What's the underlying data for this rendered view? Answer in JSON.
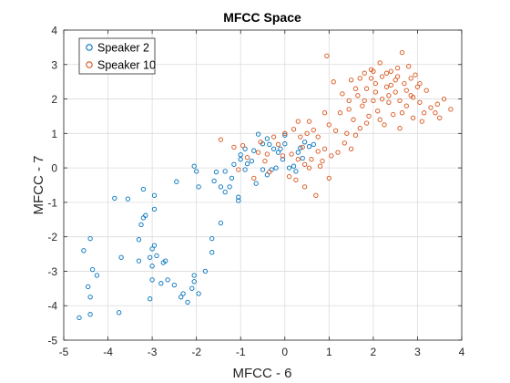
{
  "chart_data": {
    "type": "scatter",
    "title": "MFCC Space",
    "xlabel": "MFCC - 6",
    "ylabel": "MFCC - 7",
    "xlim": [
      -5,
      4
    ],
    "ylim": [
      -5,
      4
    ],
    "xticks": [
      "-5",
      "-4",
      "-3",
      "-2",
      "-1",
      "0",
      "1",
      "2",
      "3",
      "4"
    ],
    "yticks": [
      "-5",
      "-4",
      "-3",
      "-2",
      "-1",
      "0",
      "1",
      "2",
      "3",
      "4"
    ],
    "grid": true,
    "legend_position": "top-left",
    "series": [
      {
        "name": "Speaker 2",
        "color": "#0072BD",
        "marker": "open-circle",
        "points": [
          [
            -4.65,
            -4.35
          ],
          [
            -4.4,
            -4.25
          ],
          [
            -4.4,
            -3.75
          ],
          [
            -4.45,
            -3.45
          ],
          [
            -4.25,
            -3.12
          ],
          [
            -4.35,
            -2.95
          ],
          [
            -4.55,
            -2.4
          ],
          [
            -4.4,
            -2.05
          ],
          [
            -3.85,
            -0.88
          ],
          [
            -3.55,
            -0.9
          ],
          [
            -3.2,
            -0.62
          ],
          [
            -2.95,
            -0.8
          ],
          [
            -3.15,
            -1.38
          ],
          [
            -3.2,
            -1.45
          ],
          [
            -3.25,
            -1.65
          ],
          [
            -2.95,
            -1.2
          ],
          [
            -3.3,
            -2.08
          ],
          [
            -2.95,
            -2.25
          ],
          [
            -2.9,
            -2.55
          ],
          [
            -3.05,
            -2.6
          ],
          [
            -2.75,
            -2.75
          ],
          [
            -3.3,
            -2.7
          ],
          [
            -3.0,
            -2.85
          ],
          [
            -3.0,
            -3.25
          ],
          [
            -2.65,
            -3.25
          ],
          [
            -2.5,
            -3.4
          ],
          [
            -3.05,
            -3.8
          ],
          [
            -2.8,
            -3.35
          ],
          [
            -3.0,
            -2.35
          ],
          [
            -2.7,
            -2.7
          ],
          [
            -3.7,
            -2.6
          ],
          [
            -3.75,
            -4.2
          ],
          [
            -2.05,
            -3.12
          ],
          [
            -2.1,
            -3.5
          ],
          [
            -2.3,
            -3.65
          ],
          [
            -2.35,
            -3.75
          ],
          [
            -2.2,
            -3.9
          ],
          [
            -1.95,
            -3.65
          ],
          [
            -2.05,
            -3.3
          ],
          [
            -1.8,
            -3.0
          ],
          [
            -1.65,
            -2.45
          ],
          [
            -1.65,
            -2.05
          ],
          [
            -1.45,
            -1.6
          ],
          [
            -1.05,
            -0.95
          ],
          [
            -1.05,
            -0.85
          ],
          [
            -1.6,
            -0.38
          ],
          [
            -1.45,
            -0.55
          ],
          [
            -1.35,
            -0.7
          ],
          [
            -1.25,
            -0.55
          ],
          [
            -1.2,
            -0.3
          ],
          [
            -1.35,
            -0.1
          ],
          [
            -1.55,
            -0.12
          ],
          [
            -1.0,
            0.25
          ],
          [
            -1.0,
            0.38
          ],
          [
            -0.9,
            -0.05
          ],
          [
            -0.85,
            0.12
          ],
          [
            -0.75,
            0.2
          ],
          [
            -0.7,
            0.5
          ],
          [
            -0.6,
            0.98
          ],
          [
            -0.5,
            -0.05
          ],
          [
            -0.5,
            0.7
          ],
          [
            -0.4,
            0.85
          ],
          [
            -0.3,
            -0.05
          ],
          [
            -0.2,
            0.0
          ],
          [
            -0.25,
            0.55
          ],
          [
            -0.35,
            0.68
          ],
          [
            -0.1,
            0.55
          ],
          [
            -0.05,
            0.25
          ],
          [
            0.0,
            0.95
          ],
          [
            0.1,
            0.0
          ],
          [
            0.2,
            0.05
          ],
          [
            0.25,
            -0.1
          ],
          [
            0.3,
            0.45
          ],
          [
            0.35,
            0.58
          ],
          [
            0.45,
            0.75
          ],
          [
            0.55,
            0.62
          ],
          [
            0.65,
            0.68
          ],
          [
            -2.0,
            -0.1
          ],
          [
            -2.05,
            0.05
          ],
          [
            -2.45,
            -0.4
          ],
          [
            -1.95,
            -0.55
          ],
          [
            -0.65,
            -0.45
          ],
          [
            -1.15,
            0.1
          ],
          [
            -0.9,
            0.55
          ],
          [
            -0.15,
            0.45
          ],
          [
            0.4,
            0.28
          ],
          [
            0.0,
            0.7
          ],
          [
            -0.4,
            -0.2
          ]
        ]
      },
      {
        "name": "Speaker 10",
        "color": "#D95319",
        "marker": "open-circle",
        "points": [
          [
            -1.45,
            0.82
          ],
          [
            -1.15,
            0.6
          ],
          [
            -1.05,
            -0.05
          ],
          [
            -0.85,
            0.3
          ],
          [
            -0.6,
            0.45
          ],
          [
            -0.45,
            0.2
          ],
          [
            -0.35,
            -0.12
          ],
          [
            -0.25,
            0.9
          ],
          [
            -0.15,
            0.68
          ],
          [
            0.0,
            1.0
          ],
          [
            0.1,
            -0.25
          ],
          [
            0.15,
            0.4
          ],
          [
            0.2,
            1.12
          ],
          [
            0.25,
            -0.35
          ],
          [
            0.3,
            1.35
          ],
          [
            0.35,
            0.9
          ],
          [
            0.4,
            0.6
          ],
          [
            0.45,
            -0.55
          ],
          [
            0.5,
            1.0
          ],
          [
            0.55,
            1.35
          ],
          [
            0.6,
            0.25
          ],
          [
            0.65,
            1.1
          ],
          [
            0.7,
            -0.8
          ],
          [
            0.75,
            0.48
          ],
          [
            0.8,
            0.05
          ],
          [
            0.85,
            0.2
          ],
          [
            0.9,
            0.55
          ],
          [
            0.95,
            3.25
          ],
          [
            1.0,
            -0.3
          ],
          [
            1.05,
            0.35
          ],
          [
            1.15,
            1.08
          ],
          [
            1.25,
            1.6
          ],
          [
            1.3,
            2.15
          ],
          [
            1.35,
            0.72
          ],
          [
            1.4,
            1.0
          ],
          [
            1.45,
            1.7
          ],
          [
            1.5,
            2.55
          ],
          [
            1.55,
            1.4
          ],
          [
            1.6,
            0.95
          ],
          [
            1.65,
            2.1
          ],
          [
            1.7,
            2.6
          ],
          [
            1.75,
            1.8
          ],
          [
            1.8,
            2.75
          ],
          [
            1.85,
            2.3
          ],
          [
            1.9,
            1.5
          ],
          [
            1.95,
            2.85
          ],
          [
            2.0,
            1.95
          ],
          [
            2.05,
            2.45
          ],
          [
            2.1,
            1.65
          ],
          [
            2.15,
            3.05
          ],
          [
            2.2,
            2.65
          ],
          [
            2.25,
            1.25
          ],
          [
            2.3,
            2.35
          ],
          [
            2.35,
            1.9
          ],
          [
            2.4,
            2.8
          ],
          [
            2.45,
            1.55
          ],
          [
            2.5,
            2.2
          ],
          [
            2.55,
            2.65
          ],
          [
            2.6,
            1.15
          ],
          [
            2.65,
            3.35
          ],
          [
            2.7,
            2.45
          ],
          [
            2.75,
            1.8
          ],
          [
            2.8,
            2.95
          ],
          [
            2.85,
            2.1
          ],
          [
            2.9,
            1.45
          ],
          [
            2.95,
            2.7
          ],
          [
            3.0,
            2.35
          ],
          [
            3.05,
            1.9
          ],
          [
            3.1,
            1.35
          ],
          [
            3.2,
            2.25
          ],
          [
            3.3,
            1.75
          ],
          [
            3.4,
            1.6
          ],
          [
            3.5,
            1.45
          ],
          [
            3.6,
            2.0
          ],
          [
            3.75,
            1.7
          ],
          [
            1.5,
            0.55
          ],
          [
            1.7,
            1.15
          ],
          [
            2.2,
            2.0
          ],
          [
            2.4,
            2.4
          ],
          [
            2.55,
            2.9
          ],
          [
            1.6,
            2.3
          ],
          [
            1.95,
            2.6
          ],
          [
            2.05,
            2.2
          ],
          [
            2.3,
            2.75
          ],
          [
            2.6,
            1.95
          ],
          [
            2.75,
            2.25
          ],
          [
            2.9,
            2.05
          ],
          [
            3.15,
            1.6
          ],
          [
            1.8,
            1.95
          ],
          [
            1.45,
            1.95
          ],
          [
            1.1,
            2.5
          ],
          [
            0.9,
            1.6
          ],
          [
            1.2,
            0.45
          ],
          [
            0.75,
            0.9
          ],
          [
            0.55,
            0.0
          ],
          [
            0.3,
            0.25
          ],
          [
            -0.05,
            0.35
          ],
          [
            -0.4,
            0.4
          ],
          [
            -0.7,
            -0.3
          ],
          [
            -0.95,
            0.65
          ],
          [
            -0.55,
            0.75
          ],
          [
            0.45,
            0.1
          ],
          [
            1.0,
            1.25
          ],
          [
            2.35,
            2.1
          ],
          [
            2.0,
            2.8
          ],
          [
            2.5,
            2.55
          ],
          [
            2.85,
            2.6
          ],
          [
            3.05,
            2.45
          ],
          [
            3.45,
            1.85
          ],
          [
            2.15,
            1.4
          ],
          [
            1.85,
            1.3
          ],
          [
            2.65,
            1.6
          ]
        ]
      }
    ]
  }
}
